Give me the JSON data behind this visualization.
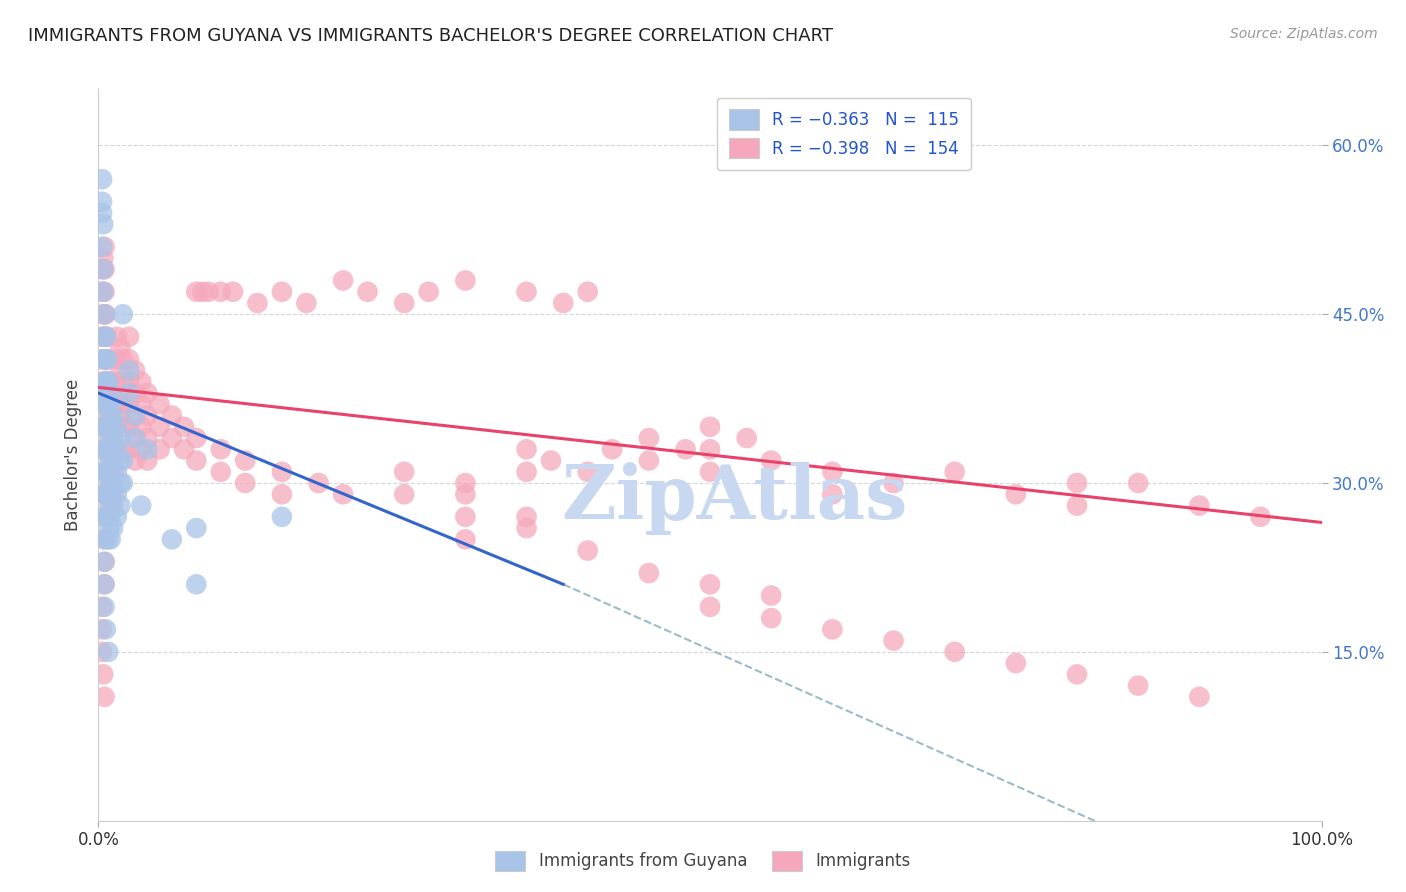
{
  "title": "IMMIGRANTS FROM GUYANA VS IMMIGRANTS BACHELOR'S DEGREE CORRELATION CHART",
  "source_text": "Source: ZipAtlas.com",
  "ylabel": "Bachelor's Degree",
  "scatter_color_blue": "#a8c4e8",
  "scatter_color_pink": "#f5a8bc",
  "line_color_blue": "#3366cc",
  "line_color_pink": "#e8436a",
  "line_color_dashed": "#99bbcc",
  "watermark_text": "ZipAtlas",
  "watermark_color": "#c8d8f0",
  "legend_text_color": "#2255cc",
  "right_tick_color": "#4477cc",
  "blue_dots": [
    [
      0.003,
      0.51
    ],
    [
      0.003,
      0.54
    ],
    [
      0.004,
      0.49
    ],
    [
      0.004,
      0.47
    ],
    [
      0.005,
      0.45
    ],
    [
      0.005,
      0.43
    ],
    [
      0.005,
      0.41
    ],
    [
      0.005,
      0.39
    ],
    [
      0.005,
      0.37
    ],
    [
      0.005,
      0.35
    ],
    [
      0.005,
      0.33
    ],
    [
      0.005,
      0.31
    ],
    [
      0.005,
      0.29
    ],
    [
      0.005,
      0.27
    ],
    [
      0.005,
      0.25
    ],
    [
      0.005,
      0.23
    ],
    [
      0.006,
      0.43
    ],
    [
      0.006,
      0.41
    ],
    [
      0.006,
      0.39
    ],
    [
      0.006,
      0.37
    ],
    [
      0.006,
      0.35
    ],
    [
      0.006,
      0.33
    ],
    [
      0.006,
      0.31
    ],
    [
      0.006,
      0.29
    ],
    [
      0.007,
      0.41
    ],
    [
      0.007,
      0.39
    ],
    [
      0.007,
      0.37
    ],
    [
      0.007,
      0.35
    ],
    [
      0.007,
      0.33
    ],
    [
      0.007,
      0.31
    ],
    [
      0.007,
      0.29
    ],
    [
      0.007,
      0.27
    ],
    [
      0.008,
      0.39
    ],
    [
      0.008,
      0.37
    ],
    [
      0.008,
      0.35
    ],
    [
      0.008,
      0.33
    ],
    [
      0.008,
      0.31
    ],
    [
      0.008,
      0.29
    ],
    [
      0.008,
      0.27
    ],
    [
      0.008,
      0.25
    ],
    [
      0.009,
      0.38
    ],
    [
      0.009,
      0.36
    ],
    [
      0.009,
      0.34
    ],
    [
      0.009,
      0.32
    ],
    [
      0.009,
      0.3
    ],
    [
      0.009,
      0.28
    ],
    [
      0.009,
      0.26
    ],
    [
      0.01,
      0.37
    ],
    [
      0.01,
      0.35
    ],
    [
      0.01,
      0.33
    ],
    [
      0.01,
      0.31
    ],
    [
      0.01,
      0.29
    ],
    [
      0.01,
      0.27
    ],
    [
      0.01,
      0.25
    ],
    [
      0.012,
      0.36
    ],
    [
      0.012,
      0.34
    ],
    [
      0.012,
      0.32
    ],
    [
      0.012,
      0.3
    ],
    [
      0.012,
      0.28
    ],
    [
      0.012,
      0.26
    ],
    [
      0.015,
      0.35
    ],
    [
      0.015,
      0.33
    ],
    [
      0.015,
      0.31
    ],
    [
      0.015,
      0.29
    ],
    [
      0.015,
      0.27
    ],
    [
      0.018,
      0.34
    ],
    [
      0.018,
      0.32
    ],
    [
      0.018,
      0.3
    ],
    [
      0.018,
      0.28
    ],
    [
      0.02,
      0.45
    ],
    [
      0.02,
      0.32
    ],
    [
      0.02,
      0.3
    ],
    [
      0.025,
      0.4
    ],
    [
      0.025,
      0.38
    ],
    [
      0.03,
      0.36
    ],
    [
      0.03,
      0.34
    ],
    [
      0.035,
      0.28
    ],
    [
      0.04,
      0.33
    ],
    [
      0.06,
      0.25
    ],
    [
      0.08,
      0.26
    ],
    [
      0.15,
      0.27
    ],
    [
      0.003,
      0.57
    ],
    [
      0.003,
      0.55
    ],
    [
      0.004,
      0.53
    ],
    [
      0.005,
      0.21
    ],
    [
      0.005,
      0.19
    ],
    [
      0.006,
      0.17
    ],
    [
      0.008,
      0.15
    ],
    [
      0.08,
      0.21
    ]
  ],
  "pink_dots": [
    [
      0.003,
      0.43
    ],
    [
      0.003,
      0.41
    ],
    [
      0.003,
      0.39
    ],
    [
      0.003,
      0.37
    ],
    [
      0.003,
      0.35
    ],
    [
      0.003,
      0.33
    ],
    [
      0.004,
      0.45
    ],
    [
      0.004,
      0.43
    ],
    [
      0.004,
      0.41
    ],
    [
      0.004,
      0.39
    ],
    [
      0.004,
      0.37
    ],
    [
      0.004,
      0.35
    ],
    [
      0.005,
      0.47
    ],
    [
      0.005,
      0.45
    ],
    [
      0.005,
      0.43
    ],
    [
      0.005,
      0.41
    ],
    [
      0.005,
      0.39
    ],
    [
      0.005,
      0.37
    ],
    [
      0.005,
      0.35
    ],
    [
      0.005,
      0.33
    ],
    [
      0.005,
      0.31
    ],
    [
      0.005,
      0.29
    ],
    [
      0.005,
      0.27
    ],
    [
      0.005,
      0.25
    ],
    [
      0.005,
      0.23
    ],
    [
      0.005,
      0.21
    ],
    [
      0.006,
      0.45
    ],
    [
      0.006,
      0.43
    ],
    [
      0.006,
      0.41
    ],
    [
      0.006,
      0.39
    ],
    [
      0.006,
      0.37
    ],
    [
      0.006,
      0.35
    ],
    [
      0.006,
      0.33
    ],
    [
      0.006,
      0.31
    ],
    [
      0.006,
      0.29
    ],
    [
      0.007,
      0.43
    ],
    [
      0.007,
      0.41
    ],
    [
      0.007,
      0.39
    ],
    [
      0.007,
      0.37
    ],
    [
      0.007,
      0.35
    ],
    [
      0.007,
      0.33
    ],
    [
      0.007,
      0.31
    ],
    [
      0.008,
      0.41
    ],
    [
      0.008,
      0.39
    ],
    [
      0.008,
      0.37
    ],
    [
      0.008,
      0.35
    ],
    [
      0.008,
      0.33
    ],
    [
      0.008,
      0.31
    ],
    [
      0.008,
      0.29
    ],
    [
      0.009,
      0.39
    ],
    [
      0.009,
      0.37
    ],
    [
      0.009,
      0.35
    ],
    [
      0.009,
      0.33
    ],
    [
      0.009,
      0.31
    ],
    [
      0.01,
      0.38
    ],
    [
      0.01,
      0.36
    ],
    [
      0.01,
      0.34
    ],
    [
      0.01,
      0.32
    ],
    [
      0.01,
      0.3
    ],
    [
      0.01,
      0.28
    ],
    [
      0.012,
      0.37
    ],
    [
      0.012,
      0.35
    ],
    [
      0.012,
      0.33
    ],
    [
      0.012,
      0.31
    ],
    [
      0.012,
      0.29
    ],
    [
      0.015,
      0.43
    ],
    [
      0.015,
      0.41
    ],
    [
      0.015,
      0.39
    ],
    [
      0.015,
      0.37
    ],
    [
      0.015,
      0.35
    ],
    [
      0.015,
      0.33
    ],
    [
      0.018,
      0.42
    ],
    [
      0.018,
      0.4
    ],
    [
      0.018,
      0.38
    ],
    [
      0.018,
      0.36
    ],
    [
      0.02,
      0.41
    ],
    [
      0.02,
      0.39
    ],
    [
      0.02,
      0.37
    ],
    [
      0.02,
      0.35
    ],
    [
      0.02,
      0.33
    ],
    [
      0.025,
      0.43
    ],
    [
      0.025,
      0.41
    ],
    [
      0.025,
      0.39
    ],
    [
      0.025,
      0.37
    ],
    [
      0.025,
      0.35
    ],
    [
      0.025,
      0.33
    ],
    [
      0.03,
      0.4
    ],
    [
      0.03,
      0.38
    ],
    [
      0.03,
      0.36
    ],
    [
      0.03,
      0.34
    ],
    [
      0.03,
      0.32
    ],
    [
      0.035,
      0.39
    ],
    [
      0.035,
      0.37
    ],
    [
      0.035,
      0.35
    ],
    [
      0.035,
      0.33
    ],
    [
      0.04,
      0.38
    ],
    [
      0.04,
      0.36
    ],
    [
      0.04,
      0.34
    ],
    [
      0.04,
      0.32
    ],
    [
      0.05,
      0.37
    ],
    [
      0.05,
      0.35
    ],
    [
      0.05,
      0.33
    ],
    [
      0.06,
      0.36
    ],
    [
      0.06,
      0.34
    ],
    [
      0.07,
      0.35
    ],
    [
      0.07,
      0.33
    ],
    [
      0.08,
      0.34
    ],
    [
      0.08,
      0.32
    ],
    [
      0.1,
      0.33
    ],
    [
      0.1,
      0.31
    ],
    [
      0.12,
      0.32
    ],
    [
      0.12,
      0.3
    ],
    [
      0.15,
      0.31
    ],
    [
      0.15,
      0.29
    ],
    [
      0.18,
      0.3
    ],
    [
      0.2,
      0.29
    ],
    [
      0.25,
      0.31
    ],
    [
      0.25,
      0.29
    ],
    [
      0.3,
      0.3
    ],
    [
      0.3,
      0.29
    ],
    [
      0.35,
      0.33
    ],
    [
      0.35,
      0.31
    ],
    [
      0.37,
      0.32
    ],
    [
      0.4,
      0.31
    ],
    [
      0.42,
      0.33
    ],
    [
      0.45,
      0.34
    ],
    [
      0.45,
      0.32
    ],
    [
      0.48,
      0.33
    ],
    [
      0.5,
      0.35
    ],
    [
      0.5,
      0.33
    ],
    [
      0.5,
      0.31
    ],
    [
      0.53,
      0.34
    ],
    [
      0.55,
      0.32
    ],
    [
      0.6,
      0.31
    ],
    [
      0.6,
      0.29
    ],
    [
      0.65,
      0.3
    ],
    [
      0.7,
      0.31
    ],
    [
      0.75,
      0.29
    ],
    [
      0.8,
      0.3
    ],
    [
      0.8,
      0.28
    ],
    [
      0.85,
      0.3
    ],
    [
      0.9,
      0.28
    ],
    [
      0.95,
      0.27
    ],
    [
      0.003,
      0.47
    ],
    [
      0.003,
      0.49
    ],
    [
      0.004,
      0.5
    ],
    [
      0.005,
      0.51
    ],
    [
      0.005,
      0.49
    ],
    [
      0.08,
      0.47
    ],
    [
      0.085,
      0.47
    ],
    [
      0.09,
      0.47
    ],
    [
      0.1,
      0.47
    ],
    [
      0.11,
      0.47
    ],
    [
      0.13,
      0.46
    ],
    [
      0.15,
      0.47
    ],
    [
      0.17,
      0.46
    ],
    [
      0.2,
      0.48
    ],
    [
      0.22,
      0.47
    ],
    [
      0.25,
      0.46
    ],
    [
      0.27,
      0.47
    ],
    [
      0.3,
      0.48
    ],
    [
      0.35,
      0.47
    ],
    [
      0.38,
      0.46
    ],
    [
      0.4,
      0.47
    ],
    [
      0.003,
      0.19
    ],
    [
      0.003,
      0.17
    ],
    [
      0.003,
      0.15
    ],
    [
      0.004,
      0.13
    ],
    [
      0.005,
      0.11
    ],
    [
      0.3,
      0.27
    ],
    [
      0.3,
      0.25
    ],
    [
      0.35,
      0.26
    ],
    [
      0.4,
      0.24
    ],
    [
      0.45,
      0.22
    ],
    [
      0.5,
      0.21
    ],
    [
      0.5,
      0.19
    ],
    [
      0.55,
      0.2
    ],
    [
      0.55,
      0.18
    ],
    [
      0.6,
      0.17
    ],
    [
      0.65,
      0.16
    ],
    [
      0.7,
      0.15
    ],
    [
      0.75,
      0.14
    ],
    [
      0.8,
      0.13
    ],
    [
      0.85,
      0.12
    ],
    [
      0.9,
      0.11
    ],
    [
      0.35,
      0.27
    ]
  ],
  "blue_line_x": [
    0.0,
    0.38
  ],
  "blue_line_y": [
    0.38,
    0.21
  ],
  "pink_line_x": [
    0.0,
    1.0
  ],
  "pink_line_y": [
    0.385,
    0.265
  ],
  "dashed_line_x": [
    0.38,
    1.0
  ],
  "dashed_line_y": [
    0.21,
    -0.09
  ],
  "xlim": [
    0.0,
    1.0
  ],
  "ylim": [
    0.0,
    0.65
  ],
  "yticks": [
    0.15,
    0.3,
    0.45,
    0.6
  ],
  "ytick_labels_right": [
    "15.0%",
    "30.0%",
    "45.0%",
    "60.0%"
  ],
  "xtick_positions": [
    0.0,
    1.0
  ],
  "xtick_labels": [
    "0.0%",
    "100.0%"
  ]
}
